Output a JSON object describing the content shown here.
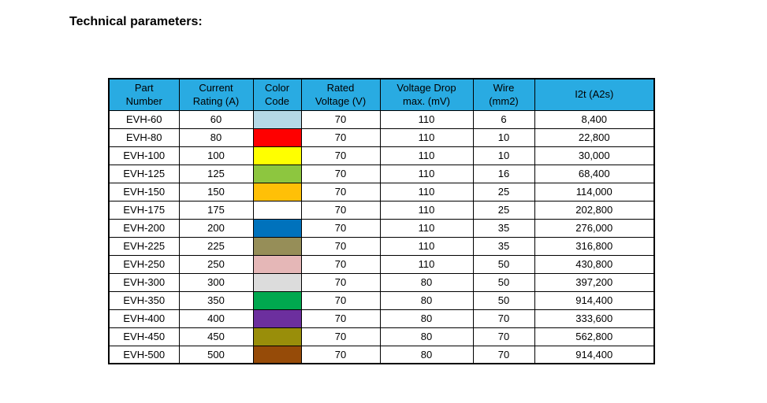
{
  "page": {
    "background": "#ffffff"
  },
  "title": "Technical parameters:",
  "table": {
    "header_bg": "#29ABE2",
    "header_text_color": "#000000",
    "border_color": "#000000",
    "columns": [
      {
        "id": "part_number",
        "label": "Part\nNumber"
      },
      {
        "id": "current_rating_a",
        "label": "Current\nRating (A)"
      },
      {
        "id": "color_code",
        "label": "Color\nCode"
      },
      {
        "id": "rated_voltage_v",
        "label": "Rated\nVoltage (V)"
      },
      {
        "id": "voltage_drop_max_mv",
        "label": "Voltage Drop\nmax. (mV)"
      },
      {
        "id": "wire_mm2",
        "label": "Wire\n(mm2)"
      },
      {
        "id": "i2t_a2s",
        "label": "I2t (A2s)"
      }
    ],
    "rows": [
      {
        "part_number": "EVH-60",
        "current_rating_a": "60",
        "color_code_hex": "#B5D8E6",
        "rated_voltage_v": "70",
        "voltage_drop_max_mv": "110",
        "wire_mm2": "6",
        "i2t_a2s": "8,400"
      },
      {
        "part_number": "EVH-80",
        "current_rating_a": "80",
        "color_code_hex": "#FE0000",
        "rated_voltage_v": "70",
        "voltage_drop_max_mv": "110",
        "wire_mm2": "10",
        "i2t_a2s": "22,800"
      },
      {
        "part_number": "EVH-100",
        "current_rating_a": "100",
        "color_code_hex": "#FFFF00",
        "rated_voltage_v": "70",
        "voltage_drop_max_mv": "110",
        "wire_mm2": "10",
        "i2t_a2s": "30,000"
      },
      {
        "part_number": "EVH-125",
        "current_rating_a": "125",
        "color_code_hex": "#8DC63F",
        "rated_voltage_v": "70",
        "voltage_drop_max_mv": "110",
        "wire_mm2": "16",
        "i2t_a2s": "68,400"
      },
      {
        "part_number": "EVH-150",
        "current_rating_a": "150",
        "color_code_hex": "#FFC007",
        "rated_voltage_v": "70",
        "voltage_drop_max_mv": "110",
        "wire_mm2": "25",
        "i2t_a2s": "114,000"
      },
      {
        "part_number": "EVH-175",
        "current_rating_a": "175",
        "color_code_hex": "#FFFFFF",
        "rated_voltage_v": "70",
        "voltage_drop_max_mv": "110",
        "wire_mm2": "25",
        "i2t_a2s": "202,800"
      },
      {
        "part_number": "EVH-200",
        "current_rating_a": "200",
        "color_code_hex": "#0072BC",
        "rated_voltage_v": "70",
        "voltage_drop_max_mv": "110",
        "wire_mm2": "35",
        "i2t_a2s": "276,000"
      },
      {
        "part_number": "EVH-225",
        "current_rating_a": "225",
        "color_code_hex": "#968E58",
        "rated_voltage_v": "70",
        "voltage_drop_max_mv": "110",
        "wire_mm2": "35",
        "i2t_a2s": "316,800"
      },
      {
        "part_number": "EVH-250",
        "current_rating_a": "250",
        "color_code_hex": "#E5B7B7",
        "rated_voltage_v": "70",
        "voltage_drop_max_mv": "110",
        "wire_mm2": "50",
        "i2t_a2s": "430,800"
      },
      {
        "part_number": "EVH-300",
        "current_rating_a": "300",
        "color_code_hex": "#DCDCDC",
        "rated_voltage_v": "70",
        "voltage_drop_max_mv": "80",
        "wire_mm2": "50",
        "i2t_a2s": "397,200"
      },
      {
        "part_number": "EVH-350",
        "current_rating_a": "350",
        "color_code_hex": "#00A84F",
        "rated_voltage_v": "70",
        "voltage_drop_max_mv": "80",
        "wire_mm2": "50",
        "i2t_a2s": "914,400"
      },
      {
        "part_number": "EVH-400",
        "current_rating_a": "400",
        "color_code_hex": "#6C2F9E",
        "rated_voltage_v": "70",
        "voltage_drop_max_mv": "80",
        "wire_mm2": "70",
        "i2t_a2s": "333,600"
      },
      {
        "part_number": "EVH-450",
        "current_rating_a": "450",
        "color_code_hex": "#998E0A",
        "rated_voltage_v": "70",
        "voltage_drop_max_mv": "80",
        "wire_mm2": "70",
        "i2t_a2s": "562,800"
      },
      {
        "part_number": "EVH-500",
        "current_rating_a": "500",
        "color_code_hex": "#964B08",
        "rated_voltage_v": "70",
        "voltage_drop_max_mv": "80",
        "wire_mm2": "70",
        "i2t_a2s": "914,400"
      }
    ]
  }
}
